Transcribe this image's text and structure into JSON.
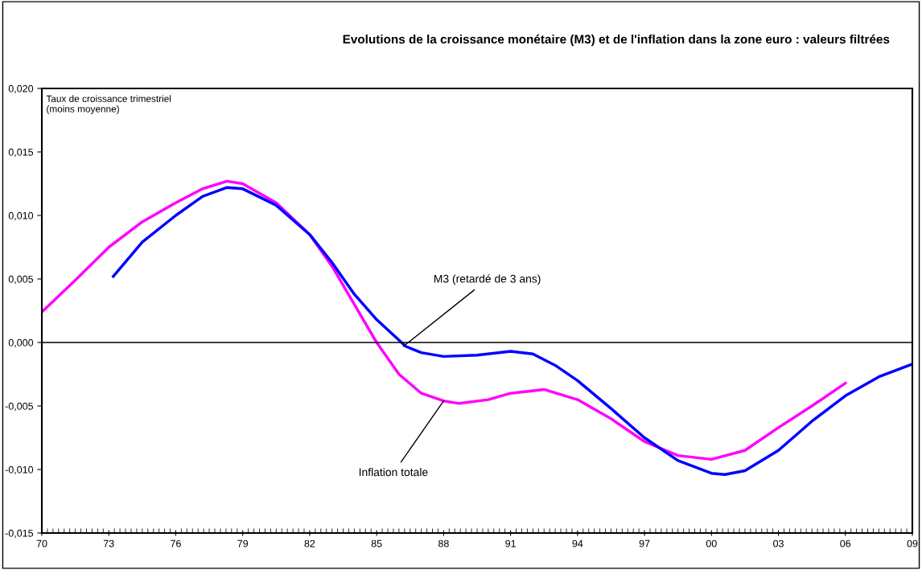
{
  "chart_data": {
    "type": "line",
    "title": "Evolutions de la croissance monétaire (M3) et de l'inflation dans la zone euro : valeurs filtrées",
    "ylabel": "Taux de croissance trimestriel\n(moins moyenne)",
    "series": [
      {
        "color": "#ff00ff",
        "x": [
          1970.0,
          1971.5,
          1973,
          1974.5,
          1976,
          1977.2,
          1978.3,
          1979,
          1980.5,
          1982,
          1983,
          1984,
          1985,
          1986,
          1987,
          1988,
          1988.7,
          1990,
          1991,
          1992.5,
          1994,
          1995.5,
          1997,
          1998.5,
          2000,
          2001.5,
          2003,
          2004.5,
          2006
        ],
        "values": [
          0.0024,
          0.0049,
          0.0075,
          0.0095,
          0.011,
          0.0121,
          0.0127,
          0.0125,
          0.011,
          0.0085,
          0.006,
          0.003,
          0.0,
          -0.0025,
          -0.004,
          -0.0046,
          -0.0048,
          -0.0045,
          -0.004,
          -0.0037,
          -0.0045,
          -0.006,
          -0.0078,
          -0.0089,
          -0.0092,
          -0.0085,
          -0.0067,
          -0.005,
          -0.0032
        ]
      },
      {
        "color": "#0000ff",
        "x": [
          1973.2,
          1974.5,
          1976,
          1977.2,
          1978.3,
          1979,
          1980.5,
          1982,
          1983,
          1984,
          1985,
          1986.3,
          1987,
          1988,
          1989.5,
          1991,
          1992,
          1993,
          1994,
          1995.5,
          1997,
          1998.5,
          2000,
          2000.6,
          2001.5,
          2003,
          2004.5,
          2006,
          2007.5,
          2009
        ],
        "values": [
          0.0052,
          0.0079,
          0.01,
          0.0115,
          0.0122,
          0.0121,
          0.0108,
          0.0085,
          0.0063,
          0.0038,
          0.0018,
          -0.0003,
          -0.0008,
          -0.0011,
          -0.001,
          -0.0007,
          -0.0009,
          -0.0018,
          -0.003,
          -0.0052,
          -0.0075,
          -0.0093,
          -0.0103,
          -0.0104,
          -0.0101,
          -0.0085,
          -0.0062,
          -0.0042,
          -0.0027,
          -0.0017
        ]
      }
    ],
    "annotations": [
      {
        "text": "M3 (retardé de 3 ans)",
        "x": 1986.2,
        "y": -0.0003
      },
      {
        "text": "Inflation totale",
        "x": 1988.0,
        "y": -0.0046
      }
    ],
    "ref_lines": [
      {
        "axis": "y",
        "value": 0,
        "color": "#000000"
      }
    ],
    "xlim": [
      1970,
      2009
    ],
    "xticks": [
      {
        "value": 1970,
        "label": "70"
      },
      {
        "value": 1973,
        "label": "73"
      },
      {
        "value": 1976,
        "label": "76"
      },
      {
        "value": 1979,
        "label": "79"
      },
      {
        "value": 1982,
        "label": "82"
      },
      {
        "value": 1985,
        "label": "85"
      },
      {
        "value": 1988,
        "label": "88"
      },
      {
        "value": 1991,
        "label": "91"
      },
      {
        "value": 1994,
        "label": "94"
      },
      {
        "value": 1997,
        "label": "97"
      },
      {
        "value": 2000,
        "label": "00"
      },
      {
        "value": 2003,
        "label": "03"
      },
      {
        "value": 2006,
        "label": "06"
      },
      {
        "value": 2009,
        "label": "09"
      }
    ],
    "ylim": [
      -0.015,
      0.02
    ],
    "yticks": [
      {
        "value": -0.015,
        "label": "-0,015"
      },
      {
        "value": -0.01,
        "label": "-0,010"
      },
      {
        "value": -0.005,
        "label": "-0,005"
      },
      {
        "value": 0,
        "label": "0,000"
      },
      {
        "value": 0.005,
        "label": "0,005"
      },
      {
        "value": 0.01,
        "label": "0,010"
      },
      {
        "value": 0.015,
        "label": "0,015"
      },
      {
        "value": 0.02,
        "label": "0,020"
      }
    ],
    "grid": false,
    "legend": false,
    "marker": "none",
    "line_style": "solid"
  }
}
